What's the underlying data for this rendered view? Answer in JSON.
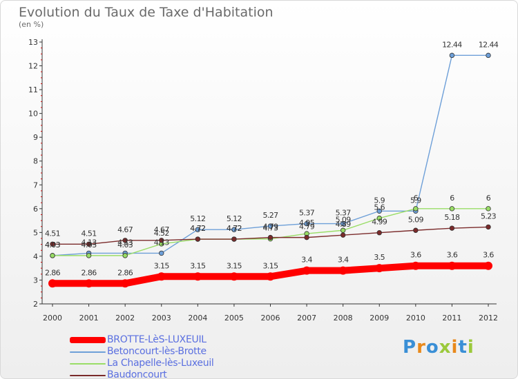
{
  "header": {
    "title": "Evolution du Taux de Taxe d'Habitation",
    "subtitle": "(en %)"
  },
  "logo": {
    "text": "Proxiti"
  },
  "chart_data": {
    "type": "line",
    "title": "Evolution du Taux de Taxe d'Habitation",
    "ylabel": "(en %)",
    "xlabel": "",
    "x": [
      "2000",
      "2001",
      "2002",
      "2003",
      "2004",
      "2005",
      "2006",
      "2007",
      "2008",
      "2009",
      "2010",
      "2011",
      "2012"
    ],
    "yticks": [
      2,
      3,
      4,
      5,
      6,
      7,
      8,
      9,
      10,
      11,
      12,
      13
    ],
    "ylim": [
      2,
      13
    ],
    "grid": false,
    "legend_position": "bottom-left",
    "series": [
      {
        "name": "BROTTE-LèS-LUXEUIL",
        "color": "#ff0000",
        "values": [
          2.86,
          2.86,
          2.86,
          3.15,
          3.15,
          3.15,
          3.15,
          3.4,
          3.4,
          3.5,
          3.6,
          3.6,
          3.6
        ],
        "labels": [
          "2.86",
          "2.86",
          "2.86",
          "3.15",
          "3.15",
          "3.15",
          "3.15",
          "3.4",
          "3.4",
          "3.5",
          "3.6",
          "3.6",
          "3.6"
        ]
      },
      {
        "name": "Betoncourt-lès-Brotte",
        "color": "#6d9fd8",
        "values": [
          4.03,
          4.13,
          4.13,
          4.13,
          5.12,
          5.12,
          5.27,
          5.37,
          5.37,
          5.9,
          5.9,
          12.44,
          12.44
        ],
        "labels": [
          "4.03",
          "4.13",
          "4.13",
          "4.13",
          "5.12",
          "5.12",
          "5.27",
          "5.37",
          "5.37",
          "5.9",
          "5.9",
          "12.44",
          "12.44"
        ]
      },
      {
        "name": "La Chapelle-lès-Luxeuil",
        "color": "#99dd66",
        "values": [
          4.03,
          4.03,
          4.03,
          4.52,
          4.72,
          4.72,
          4.73,
          4.95,
          5.09,
          5.6,
          6,
          6,
          6
        ],
        "labels": [
          "4.03",
          "4.03",
          "4.03",
          "4.52",
          "4.72",
          "4.72",
          "4.73",
          "4.95",
          "5.09",
          "5.6",
          "6",
          "6",
          "6"
        ]
      },
      {
        "name": "Baudoncourt",
        "color": "#7a2a2a",
        "values": [
          4.51,
          4.51,
          4.67,
          4.67,
          4.72,
          4.72,
          4.79,
          4.79,
          4.89,
          4.99,
          5.09,
          5.18,
          5.23
        ],
        "labels": [
          "4.51",
          "4.51",
          "4.67",
          "4.67",
          "4.72",
          "4.72",
          "4.79",
          "4.79",
          "4.89",
          "4.99",
          "5.09",
          "5.18",
          "5.23"
        ]
      }
    ]
  }
}
